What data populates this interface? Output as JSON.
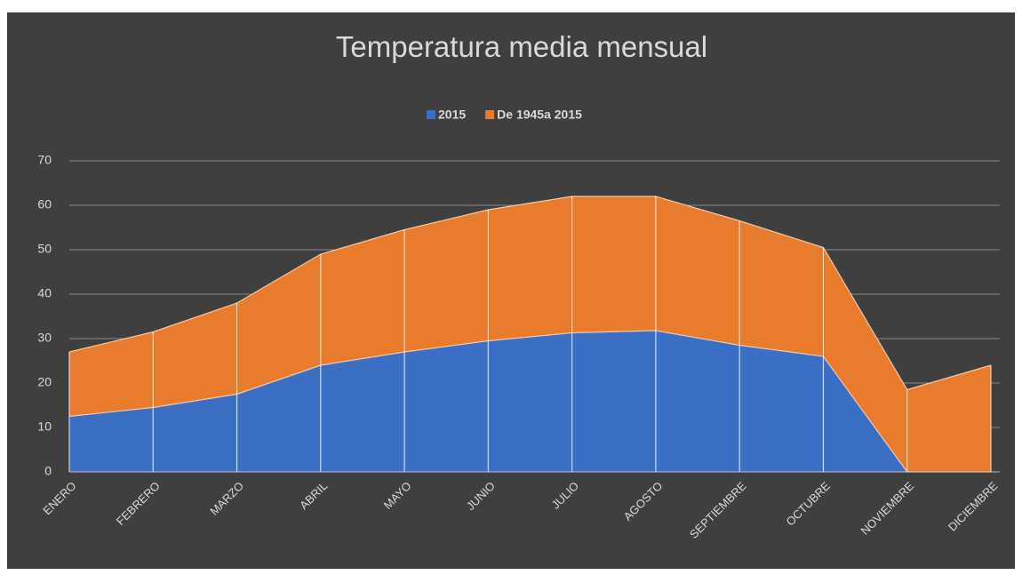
{
  "chart_data": {
    "type": "stacked_area",
    "title": "Temperatura media mensual",
    "categories": [
      "ENERO",
      "FEBRERO",
      "MARZO",
      "ABRIL",
      "MAYO",
      "JUNIO",
      "JULIO",
      "AGOSTO",
      "SEPTIEMBRE",
      "OCTUBRE",
      "NOVIEMBRE",
      "DICIEMBRE"
    ],
    "series": [
      {
        "name": "2015",
        "color": "#3b6fc6",
        "values": [
          12.5,
          14.5,
          17.5,
          24,
          27,
          29.5,
          31.3,
          31.8,
          28.5,
          26,
          0,
          0
        ]
      },
      {
        "name": "De 1945a 2015",
        "color": "#e97b2c",
        "values": [
          14.5,
          17,
          20.5,
          25,
          27.5,
          29.5,
          30.7,
          30.2,
          28,
          24.5,
          18.5,
          24
        ]
      }
    ],
    "ylim": [
      0,
      70
    ],
    "yticks": [
      0,
      10,
      20,
      30,
      40,
      50,
      60,
      70
    ],
    "grid": true,
    "legend": "top"
  }
}
